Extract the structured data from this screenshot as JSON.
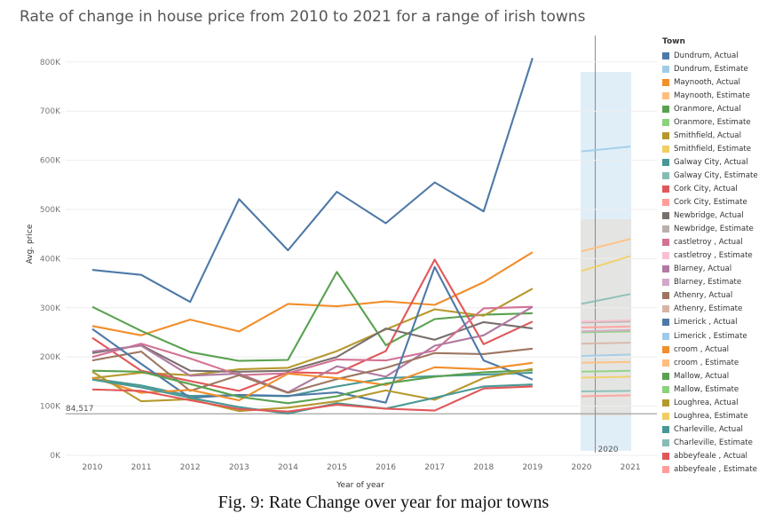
{
  "chart_data": {
    "type": "line",
    "title": "Rate of change in house price from 2010 to 2021 for a range of irish towns",
    "xlabel": "Year of year",
    "ylabel": "Avg. price",
    "years": [
      "2010",
      "2011",
      "2012",
      "2013",
      "2014",
      "2015",
      "2016",
      "2017",
      "2018",
      "2019",
      "2020",
      "2021"
    ],
    "ylim": [
      0,
      850000
    ],
    "yticks": [
      0,
      100000,
      200000,
      300000,
      400000,
      500000,
      600000,
      700000,
      800000
    ],
    "ytick_labels": [
      "0K",
      "100K",
      "200K",
      "300K",
      "400K",
      "500K",
      "600K",
      "700K",
      "800K"
    ],
    "reference_line": {
      "value": 84517,
      "label": "84,517"
    },
    "forecast_band": {
      "label": "2020"
    },
    "legend_title": "Town",
    "legend_placement": "right",
    "series": [
      {
        "name": "Dundrum, Actual",
        "color": "#4e79a7",
        "values": [
          377000,
          367000,
          312000,
          521000,
          417000,
          536000,
          472000,
          555000,
          496000,
          808000,
          null,
          null
        ]
      },
      {
        "name": "Dundrum, Estimate",
        "color": "#a0cbe8",
        "values": [
          null,
          null,
          null,
          null,
          null,
          null,
          null,
          null,
          null,
          null,
          618000,
          628000
        ]
      },
      {
        "name": "Maynooth, Actual",
        "color": "#f28e2b",
        "values": [
          263000,
          244000,
          276000,
          252000,
          308000,
          303000,
          313000,
          306000,
          352000,
          413000,
          null,
          null
        ]
      },
      {
        "name": "Maynooth, Estimate",
        "color": "#ffbe7d",
        "values": [
          null,
          null,
          null,
          null,
          null,
          null,
          null,
          null,
          null,
          null,
          415000,
          440000
        ]
      },
      {
        "name": "Oranmore, Actual",
        "color": "#59a14f",
        "values": [
          302000,
          253000,
          210000,
          192000,
          194000,
          373000,
          224000,
          277000,
          286000,
          289000,
          null,
          null
        ]
      },
      {
        "name": "Oranmore, Estimate",
        "color": "#8cd17d",
        "values": [
          null,
          null,
          null,
          null,
          null,
          null,
          null,
          null,
          null,
          null,
          250000,
          252000
        ]
      },
      {
        "name": "Smithfield, Actual",
        "color": "#b6992d",
        "values": [
          157000,
          168000,
          163000,
          175000,
          178000,
          212000,
          256000,
          297000,
          284000,
          339000,
          null,
          null
        ]
      },
      {
        "name": "Smithfield, Estimate",
        "color": "#f1ce63",
        "values": [
          null,
          null,
          null,
          null,
          null,
          null,
          null,
          null,
          null,
          null,
          375000,
          405000
        ]
      },
      {
        "name": "Galway City, Actual",
        "color": "#499894",
        "values": [
          156000,
          142000,
          121000,
          122000,
          120000,
          140000,
          157000,
          161000,
          164000,
          168000,
          null,
          null
        ]
      },
      {
        "name": "Galway City, Estimate",
        "color": "#86bcb6",
        "values": [
          null,
          null,
          null,
          null,
          null,
          null,
          null,
          null,
          null,
          null,
          308000,
          328000
        ]
      },
      {
        "name": "Cork City, Actual",
        "color": "#e15759",
        "values": [
          239000,
          172000,
          151000,
          131000,
          169000,
          167000,
          212000,
          398000,
          226000,
          272000,
          null,
          null
        ]
      },
      {
        "name": "Cork City, Estimate",
        "color": "#ff9d9a",
        "values": [
          null,
          null,
          null,
          null,
          null,
          null,
          null,
          null,
          null,
          null,
          260000,
          262000
        ]
      },
      {
        "name": "Newbridge, Actual",
        "color": "#79706e",
        "values": [
          208000,
          224000,
          172000,
          170000,
          172000,
          200000,
          258000,
          235000,
          271000,
          258000,
          null,
          null
        ]
      },
      {
        "name": "Newbridge, Estimate",
        "color": "#bab0ac",
        "values": [
          null,
          null,
          null,
          null,
          null,
          null,
          null,
          null,
          null,
          null,
          270000,
          272000
        ]
      },
      {
        "name": "castletroy , Actual",
        "color": "#d37295",
        "values": [
          200000,
          227000,
          197000,
          163000,
          167000,
          195000,
          193000,
          213000,
          299000,
          302000,
          null,
          null
        ]
      },
      {
        "name": "castletroy , Estimate",
        "color": "#fabfd2",
        "values": [
          null,
          null,
          null,
          null,
          null,
          null,
          null,
          null,
          null,
          null,
          272000,
          275000
        ]
      },
      {
        "name": "Blarney, Actual",
        "color": "#b07aa1",
        "values": [
          211000,
          223000,
          162000,
          166000,
          128000,
          181000,
          160000,
          223000,
          244000,
          302000,
          null,
          null
        ]
      },
      {
        "name": "Blarney, Estimate",
        "color": "#d4a6c8",
        "values": [
          null,
          null,
          null,
          null,
          null,
          null,
          null,
          null,
          null,
          null,
          252000,
          255000
        ]
      },
      {
        "name": "Athenry, Actual",
        "color": "#9d7660",
        "values": [
          193000,
          211000,
          131000,
          163000,
          127000,
          155000,
          178000,
          208000,
          206000,
          217000,
          null,
          null
        ]
      },
      {
        "name": "Athenry, Estimate",
        "color": "#d7b5a6",
        "values": [
          null,
          null,
          null,
          null,
          null,
          null,
          null,
          null,
          null,
          null,
          227000,
          229000
        ]
      },
      {
        "name": "Limerick , Actual",
        "color": "#4e79a7",
        "values": [
          257000,
          186000,
          117000,
          123000,
          121000,
          128000,
          107000,
          383000,
          193000,
          154000,
          null,
          null
        ]
      },
      {
        "name": "Limerick , Estimate",
        "color": "#a0cbe8",
        "values": [
          null,
          null,
          null,
          null,
          null,
          null,
          null,
          null,
          null,
          null,
          202000,
          205000
        ]
      },
      {
        "name": "croom , Actual",
        "color": "#f28e2b",
        "values": [
          158000,
          127000,
          133000,
          112000,
          166000,
          157000,
          143000,
          179000,
          175000,
          188000,
          null,
          null
        ]
      },
      {
        "name": "croom , Estimate",
        "color": "#ffbe7d",
        "values": [
          null,
          null,
          null,
          null,
          null,
          null,
          null,
          null,
          null,
          null,
          188000,
          190000
        ]
      },
      {
        "name": "Mallow, Actual",
        "color": "#59a14f",
        "values": [
          172000,
          170000,
          145000,
          119000,
          106000,
          120000,
          146000,
          160000,
          169000,
          173000,
          null,
          null
        ]
      },
      {
        "name": "Mallow, Estimate",
        "color": "#8cd17d",
        "values": [
          null,
          null,
          null,
          null,
          null,
          null,
          null,
          null,
          null,
          null,
          170000,
          172000
        ]
      },
      {
        "name": "Loughrea, Actual",
        "color": "#b6992d",
        "values": [
          170000,
          110000,
          114000,
          90000,
          97000,
          110000,
          132000,
          113000,
          157000,
          176000,
          null,
          null
        ]
      },
      {
        "name": "Loughrea, Estimate",
        "color": "#f1ce63",
        "values": [
          null,
          null,
          null,
          null,
          null,
          null,
          null,
          null,
          null,
          null,
          158000,
          160000
        ]
      },
      {
        "name": "Charleville, Actual",
        "color": "#499894",
        "values": [
          154000,
          138000,
          117000,
          98000,
          85000,
          106000,
          95000,
          117000,
          140000,
          144000,
          null,
          null
        ]
      },
      {
        "name": "Charleville, Estimate",
        "color": "#86bcb6",
        "values": [
          null,
          null,
          null,
          null,
          null,
          null,
          null,
          null,
          null,
          null,
          130000,
          131000
        ]
      },
      {
        "name": "abbeyfeale , Actual",
        "color": "#e15759",
        "values": [
          134000,
          131000,
          112000,
          94000,
          89000,
          103000,
          95000,
          91000,
          136000,
          140000,
          null,
          null
        ]
      },
      {
        "name": "abbeyfeale , Estimate",
        "color": "#ff9d9a",
        "values": [
          null,
          null,
          null,
          null,
          null,
          null,
          null,
          null,
          null,
          null,
          120000,
          122000
        ]
      }
    ]
  },
  "caption": "Fig. 9: Rate Change over year for major towns"
}
